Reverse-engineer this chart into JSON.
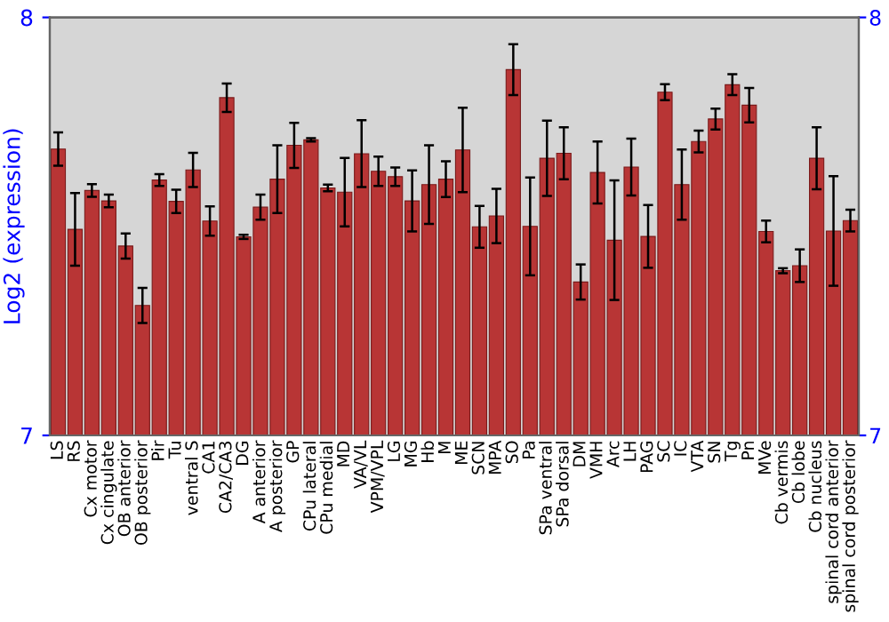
{
  "chart_data": {
    "type": "bar",
    "ylabel": "Log2 (expression)",
    "categories": [
      "LS",
      "RS",
      "Cx motor",
      "Cx cingulate",
      "OB anterior",
      "OB posterior",
      "Pir",
      "Tu",
      "ventral S",
      "CA1",
      "CA2/CA3",
      "DG",
      "A anterior",
      "A posterior",
      "GP",
      "CPu lateral",
      "CPu medial",
      "MD",
      "VA/VL",
      "VPM/VPL",
      "LG",
      "MG",
      "Hb",
      "M",
      "ME",
      "SCN",
      "MPA",
      "SO",
      "Pa",
      "SPa ventral",
      "SPa dorsal",
      "DM",
      "VMH",
      "Arc",
      "LH",
      "PAG",
      "SC",
      "IC",
      "VTA",
      "SN",
      "Tg",
      "Pn",
      "MVe",
      "Cb vermis",
      "Cb lobe",
      "Cb nucleus",
      "spinal cord anterior",
      "spinal cord posterior"
    ],
    "values": [
      7.685,
      7.493,
      7.586,
      7.561,
      7.453,
      7.311,
      7.611,
      7.56,
      7.635,
      7.513,
      7.808,
      7.475,
      7.546,
      7.613,
      7.694,
      7.707,
      7.592,
      7.582,
      7.674,
      7.632,
      7.619,
      7.561,
      7.6,
      7.613,
      7.683,
      7.499,
      7.525,
      7.875,
      7.5,
      7.663,
      7.675,
      7.367,
      7.629,
      7.467,
      7.642,
      7.476,
      7.821,
      7.6,
      7.703,
      7.757,
      7.839,
      7.79,
      7.488,
      7.394,
      7.406,
      7.663,
      7.489,
      7.514
    ],
    "errors": [
      0.04,
      0.087,
      0.015,
      0.015,
      0.03,
      0.042,
      0.014,
      0.028,
      0.041,
      0.035,
      0.034,
      0.005,
      0.03,
      0.081,
      0.054,
      0.004,
      0.008,
      0.082,
      0.08,
      0.035,
      0.022,
      0.073,
      0.094,
      0.043,
      0.101,
      0.05,
      0.065,
      0.061,
      0.117,
      0.09,
      0.062,
      0.042,
      0.074,
      0.143,
      0.068,
      0.075,
      0.019,
      0.084,
      0.026,
      0.025,
      0.025,
      0.041,
      0.026,
      0.006,
      0.039,
      0.074,
      0.131,
      0.026
    ],
    "color": "#b83535",
    "ylim": [
      7,
      8
    ],
    "yticks": [
      7,
      8
    ],
    "y2lim": [
      7,
      8
    ],
    "y2ticks": [
      7,
      8
    ],
    "grid": false,
    "legend": false
  }
}
